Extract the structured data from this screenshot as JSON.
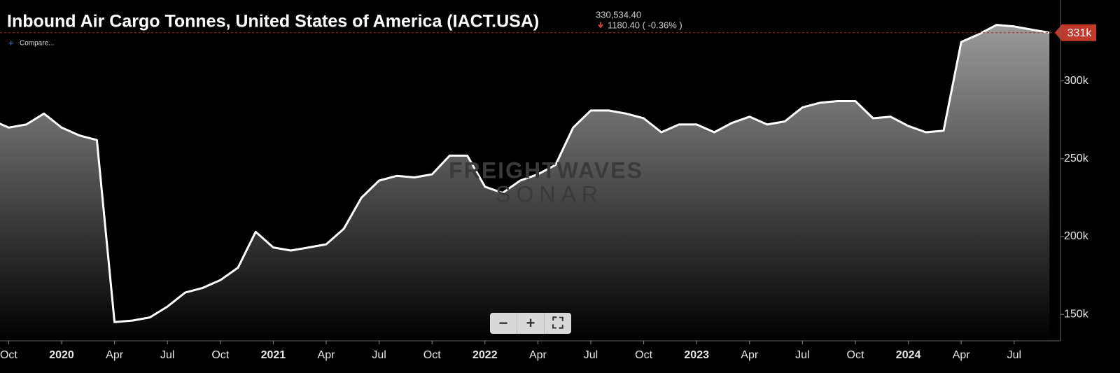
{
  "chart_data": {
    "type": "area",
    "title": "Inbound Air Cargo Tonnes, United States of America (IACT.USA)",
    "current_value": "330,534.40",
    "change": "1180.40 ( -0.36% )",
    "compare": "Compare...",
    "last_label": "331k",
    "watermark": [
      "FREIGHTWAVES",
      "SONAR"
    ],
    "color": "#ffffff",
    "x": [
      "2019-09",
      "2019-10",
      "2019-11",
      "2019-12",
      "2020-01",
      "2020-02",
      "2020-03",
      "2020-04",
      "2020-05",
      "2020-06",
      "2020-07",
      "2020-08",
      "2020-09",
      "2020-10",
      "2020-11",
      "2020-12",
      "2021-01",
      "2021-02",
      "2021-03",
      "2021-04",
      "2021-05",
      "2021-06",
      "2021-07",
      "2021-08",
      "2021-09",
      "2021-10",
      "2021-11",
      "2021-12",
      "2022-01",
      "2022-02",
      "2022-03",
      "2022-04",
      "2022-05",
      "2022-06",
      "2022-07",
      "2022-08",
      "2022-09",
      "2022-10",
      "2022-11",
      "2022-12",
      "2023-01",
      "2023-02",
      "2023-03",
      "2023-04",
      "2023-05",
      "2023-06",
      "2023-07",
      "2023-08",
      "2023-09",
      "2023-10",
      "2023-11",
      "2023-12",
      "2024-01",
      "2024-02",
      "2024-03",
      "2024-04",
      "2024-05",
      "2024-06",
      "2024-07",
      "2024-08",
      "2024-09"
    ],
    "values": [
      275000,
      270000,
      272000,
      279000,
      270000,
      265000,
      262000,
      145000,
      146000,
      148000,
      155000,
      164000,
      167000,
      172000,
      180000,
      203000,
      193000,
      191000,
      193000,
      195000,
      205000,
      225000,
      236000,
      239000,
      238000,
      240000,
      252000,
      252000,
      232000,
      228000,
      236000,
      240000,
      246000,
      270000,
      281000,
      281000,
      279000,
      276000,
      267000,
      272000,
      272000,
      267000,
      273000,
      277000,
      272000,
      274000,
      283000,
      286000,
      287000,
      287000,
      276000,
      277000,
      271000,
      267000,
      268000,
      325000,
      330000,
      336000,
      335000,
      333000,
      331000
    ],
    "ylim": [
      133000,
      352000
    ],
    "yticks": [
      {
        "value": 150000,
        "label": "150k"
      },
      {
        "value": 200000,
        "label": "200k"
      },
      {
        "value": 250000,
        "label": "250k"
      },
      {
        "value": 300000,
        "label": "300k"
      }
    ],
    "xticks": [
      {
        "value": "2019-10",
        "label": "Oct"
      },
      {
        "value": "2020-01",
        "label": "2020"
      },
      {
        "value": "2020-04",
        "label": "Apr"
      },
      {
        "value": "2020-07",
        "label": "Jul"
      },
      {
        "value": "2020-10",
        "label": "Oct"
      },
      {
        "value": "2021-01",
        "label": "2021"
      },
      {
        "value": "2021-04",
        "label": "Apr"
      },
      {
        "value": "2021-07",
        "label": "Jul"
      },
      {
        "value": "2021-10",
        "label": "Oct"
      },
      {
        "value": "2022-01",
        "label": "2022"
      },
      {
        "value": "2022-04",
        "label": "Apr"
      },
      {
        "value": "2022-07",
        "label": "Jul"
      },
      {
        "value": "2022-10",
        "label": "Oct"
      },
      {
        "value": "2023-01",
        "label": "2023"
      },
      {
        "value": "2023-04",
        "label": "Apr"
      },
      {
        "value": "2023-07",
        "label": "Jul"
      },
      {
        "value": "2023-10",
        "label": "Oct"
      },
      {
        "value": "2024-01",
        "label": "2024"
      },
      {
        "value": "2024-04",
        "label": "Apr"
      },
      {
        "value": "2024-07",
        "label": "Jul"
      }
    ]
  }
}
